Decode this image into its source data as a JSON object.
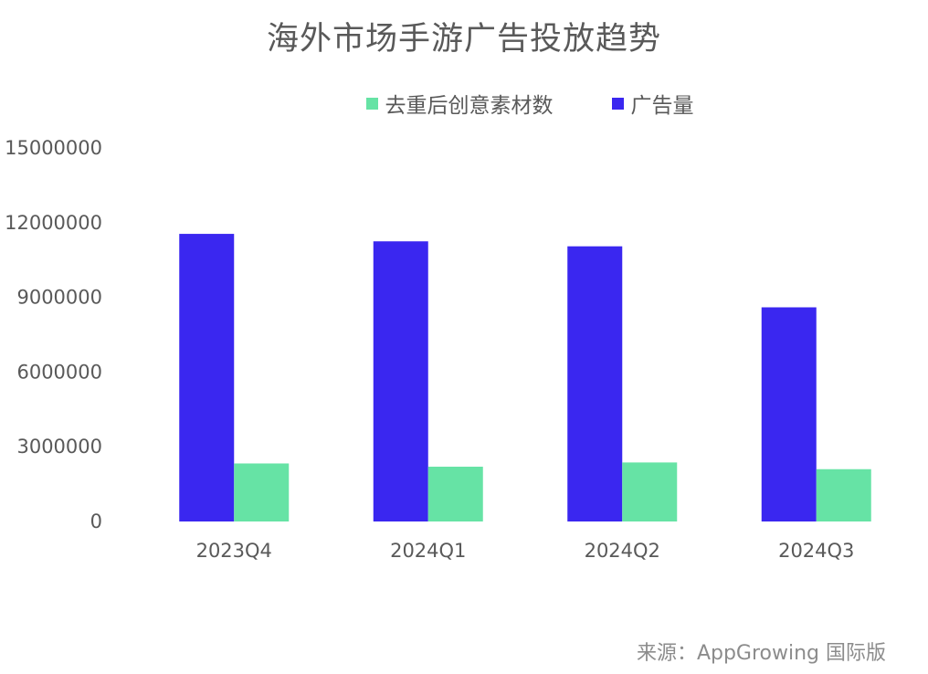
{
  "chart_data": {
    "type": "bar",
    "title": "海外市场手游广告投放趋势",
    "categories": [
      "2023Q4",
      "2024Q1",
      "2024Q2",
      "2024Q3"
    ],
    "series": [
      {
        "name": "广告量",
        "color": "#3A27F0",
        "values": [
          11550000,
          11250000,
          11050000,
          8600000
        ]
      },
      {
        "name": "去重后创意素材数",
        "color": "#66E3A5",
        "values": [
          2330000,
          2200000,
          2370000,
          2100000
        ]
      }
    ],
    "legend_order": [
      1,
      0
    ],
    "legend_position": "top",
    "ylim": [
      0,
      15000000
    ],
    "yticks": [
      "0",
      "3000000",
      "6000000",
      "9000000",
      "12000000",
      "15000000"
    ],
    "grid": false
  },
  "source": "来源：AppGrowing 国际版"
}
